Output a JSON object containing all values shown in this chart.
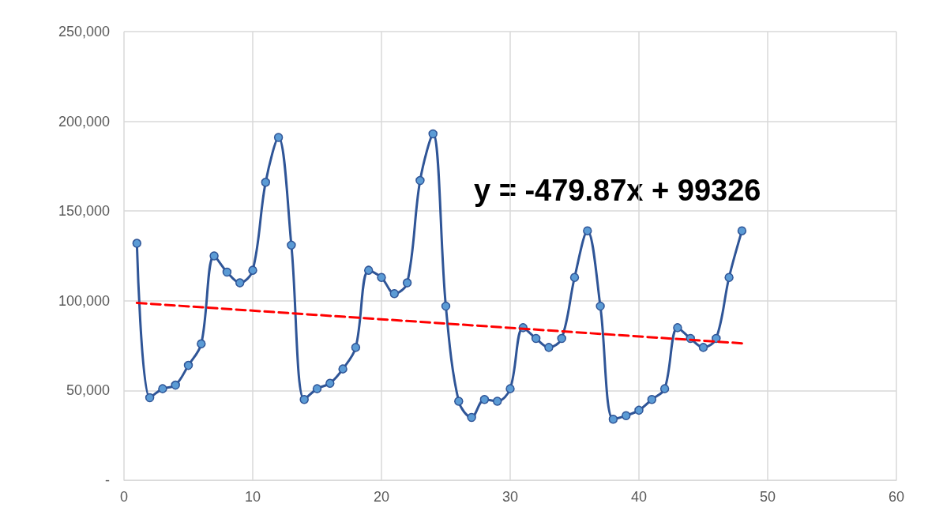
{
  "chart_data": {
    "type": "line",
    "x": [
      1,
      2,
      3,
      4,
      5,
      6,
      7,
      8,
      9,
      10,
      11,
      12,
      13,
      14,
      15,
      16,
      17,
      18,
      19,
      20,
      21,
      22,
      23,
      24,
      25,
      26,
      27,
      28,
      29,
      30,
      31,
      32,
      33,
      34,
      35,
      36,
      37,
      38,
      39,
      40,
      41,
      42,
      43,
      44,
      45,
      46,
      47,
      48
    ],
    "series": [
      {
        "color": "#2f5597",
        "marker": "circle",
        "line_style": "solid",
        "values": [
          132000,
          46000,
          51000,
          53000,
          64000,
          76000,
          125000,
          116000,
          110000,
          117000,
          166000,
          191000,
          131000,
          45000,
          51000,
          54000,
          62000,
          74000,
          117000,
          113000,
          104000,
          110000,
          167000,
          193000,
          97000,
          44000,
          35000,
          45000,
          44000,
          51000,
          85000,
          79000,
          74000,
          79000,
          113000,
          139000,
          97000,
          34000,
          36000,
          39000,
          45000,
          51000,
          85000,
          79000,
          74000,
          79000,
          113000,
          139000
        ]
      },
      {
        "type": "line",
        "color": "#ff0000",
        "marker": "none",
        "line_style": "dashed",
        "x": [
          1,
          48
        ],
        "values": [
          98800,
          76300
        ]
      }
    ],
    "annotations": [
      "y = -479.87x + 99326"
    ],
    "xlim": [
      0,
      60
    ],
    "xticks": [
      0,
      10,
      20,
      30,
      40,
      50,
      60
    ],
    "ylim": [
      0,
      250000
    ],
    "yticks": [
      {
        "value": 0,
        "label": "-"
      },
      {
        "value": 50000,
        "label": "50,000"
      },
      {
        "value": 100000,
        "label": "100,000"
      },
      {
        "value": 150000,
        "label": "150,000"
      },
      {
        "value": 200000,
        "label": "200,000"
      },
      {
        "value": 250000,
        "label": "250,000"
      }
    ],
    "grid": true
  }
}
